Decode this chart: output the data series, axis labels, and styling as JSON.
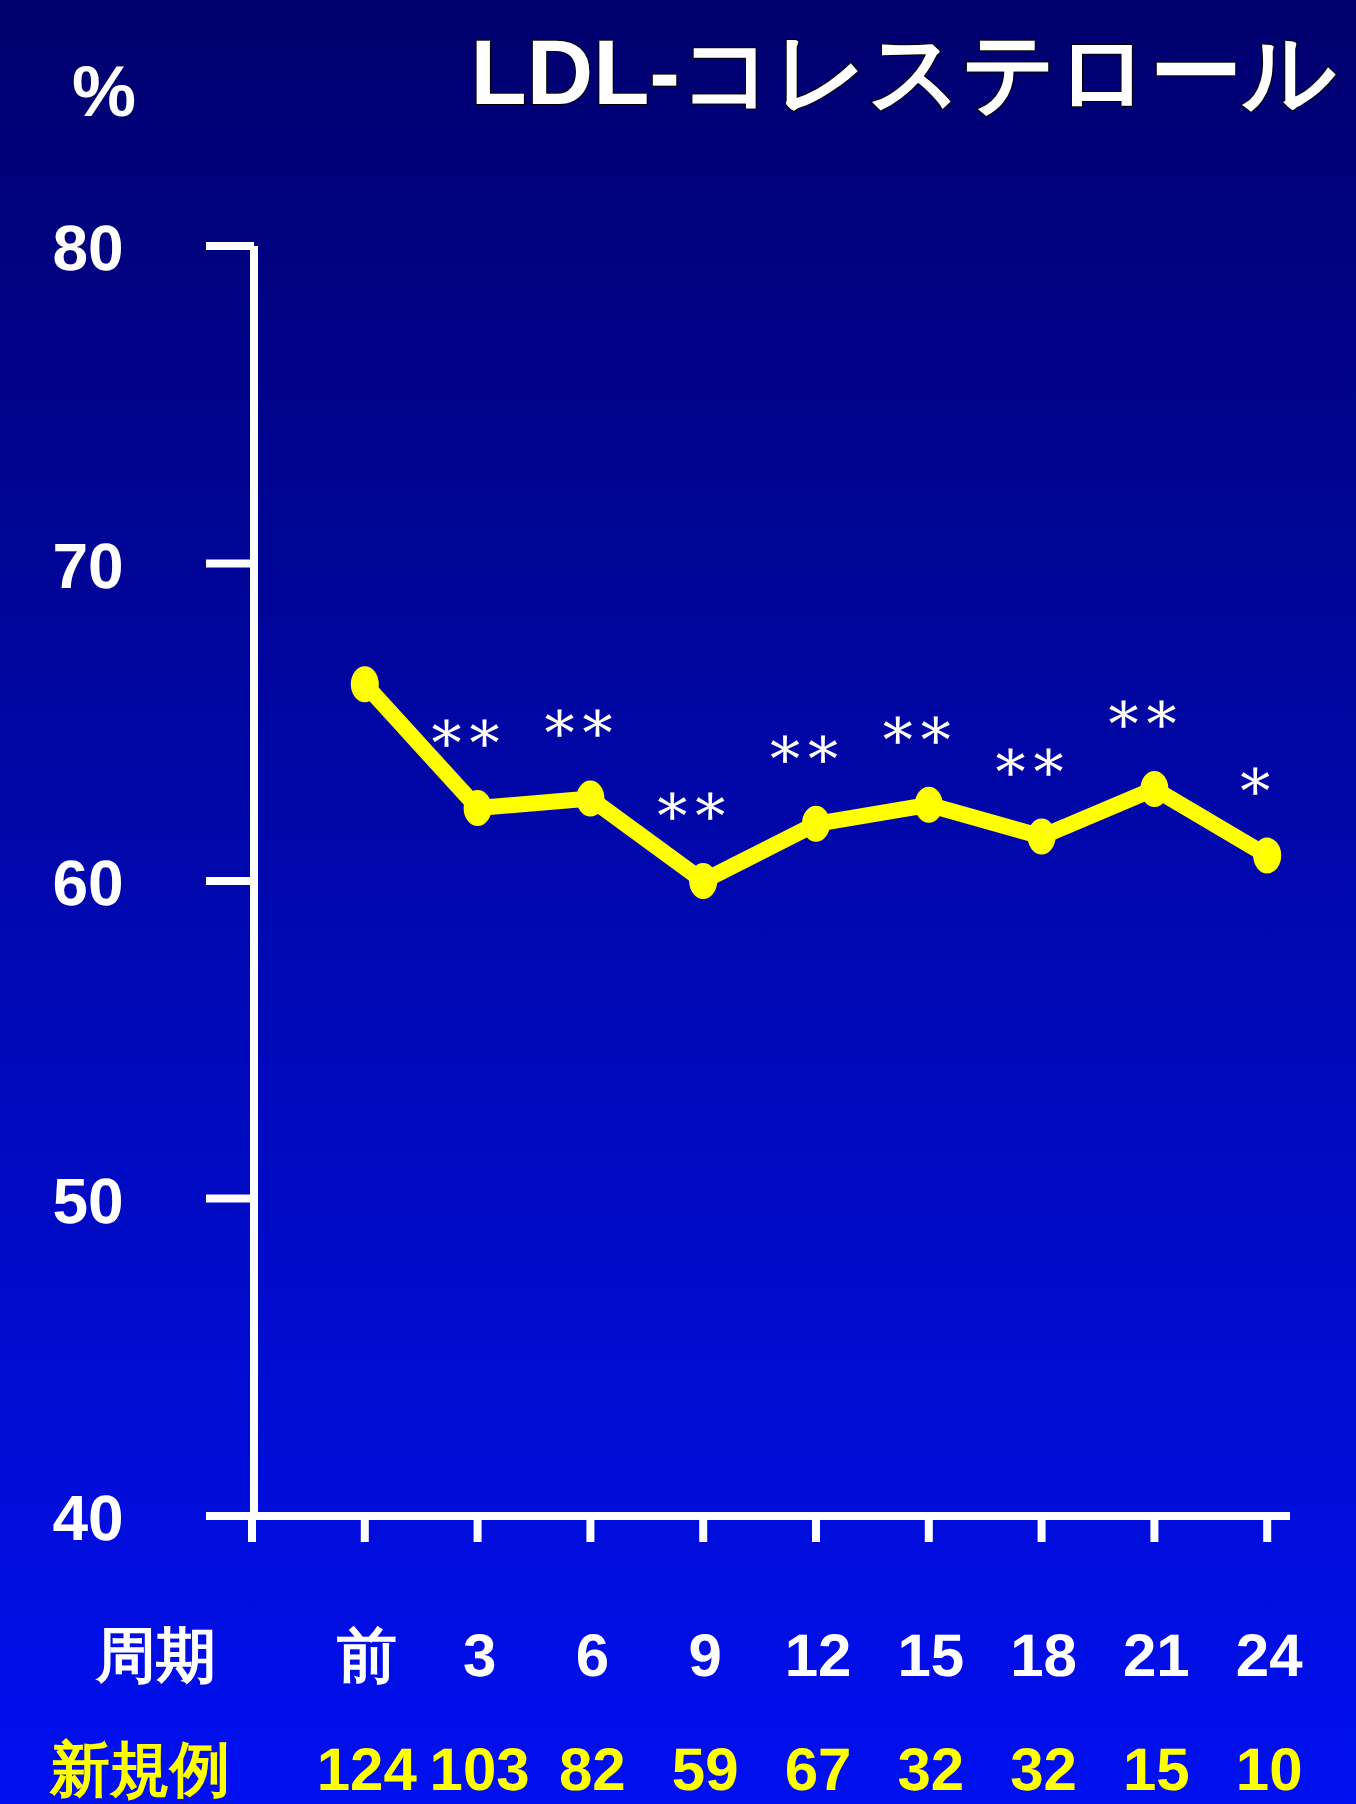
{
  "chart_data": {
    "type": "line",
    "title": "LDL-コレステロール",
    "ylabel": "%",
    "xlabel": "周期",
    "categories": [
      null,
      "前",
      "3",
      "6",
      "9",
      "12",
      "15",
      "18",
      "21",
      "24"
    ],
    "series": [
      {
        "color": "#ffff00",
        "values": [
          null,
          66.2,
          62.3,
          62.6,
          60.0,
          61.8,
          62.4,
          61.4,
          62.9,
          60.8
        ]
      }
    ],
    "marker": "circle",
    "line_style": "solid",
    "ylim": [
      40,
      80
    ],
    "yticks": [
      40,
      50,
      60,
      70,
      80
    ],
    "annotations": [
      {
        "text": "**",
        "x": "3",
        "y": 62.3
      },
      {
        "text": "**",
        "x": "6",
        "y": 62.6
      },
      {
        "text": "**",
        "x": "9",
        "y": 60.0
      },
      {
        "text": "**",
        "x": "12",
        "y": 61.8
      },
      {
        "text": "**",
        "x": "15",
        "y": 62.4
      },
      {
        "text": "**",
        "x": "18",
        "y": 61.4
      },
      {
        "text": "**",
        "x": "21",
        "y": 62.9
      },
      {
        "text": "*",
        "x": "24",
        "y": 60.8
      },
      "新規例",
      "124",
      "103",
      "82",
      "59",
      "67",
      "32",
      "32",
      "15",
      "10"
    ]
  }
}
